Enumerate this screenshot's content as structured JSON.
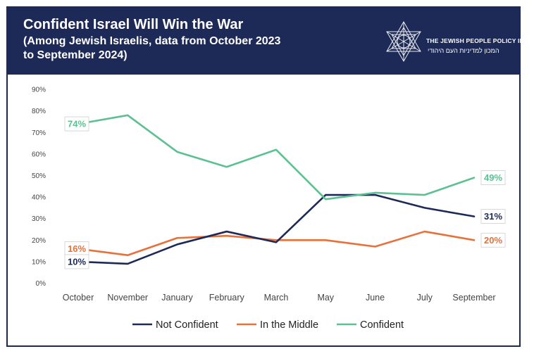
{
  "header": {
    "title": "Confident Israel Will Win the War",
    "subtitle": "(Among Jewish Israelis, data from October 2023 to September 2024)",
    "logo_en": "THE JEWISH PEOPLE POLICY INSTITUTE",
    "logo_he": "המכון למדיניות העם היהודי"
  },
  "colors": {
    "header_bg": "#1d2a57",
    "not_confident": "#1d2a57",
    "in_the_middle": "#e8703a",
    "confident": "#5cc192"
  },
  "chart_data": {
    "type": "line",
    "title": "Confident Israel Will Win the War",
    "subtitle": "(Among Jewish Israelis, data from October 2023 to September 2024)",
    "categories": [
      "October",
      "November",
      "January",
      "February",
      "March",
      "May",
      "June",
      "July",
      "September"
    ],
    "ylim": [
      0,
      90
    ],
    "yticks": [
      "0%",
      "10%",
      "20%",
      "30%",
      "40%",
      "50%",
      "60%",
      "70%",
      "80%",
      "90%"
    ],
    "grid": false,
    "legend_position": "bottom",
    "series": [
      {
        "name": "Not Confident",
        "color": "#1d2a57",
        "values": [
          10,
          9,
          18,
          24,
          19,
          41,
          41,
          35,
          31
        ]
      },
      {
        "name": "In the Middle",
        "color": "#e8703a",
        "values": [
          16,
          13,
          21,
          22,
          20,
          20,
          17,
          24,
          20
        ]
      },
      {
        "name": "Confident",
        "color": "#5cc192",
        "values": [
          74,
          78,
          61,
          54,
          62,
          39,
          42,
          41,
          49
        ]
      }
    ],
    "data_labels": [
      {
        "series": 2,
        "index": 0,
        "text": "74%"
      },
      {
        "series": 2,
        "index": 8,
        "text": "49%"
      },
      {
        "series": 1,
        "index": 0,
        "text": "16%"
      },
      {
        "series": 1,
        "index": 8,
        "text": "20%"
      },
      {
        "series": 0,
        "index": 0,
        "text": "10%"
      },
      {
        "series": 0,
        "index": 8,
        "text": "31%"
      }
    ]
  }
}
